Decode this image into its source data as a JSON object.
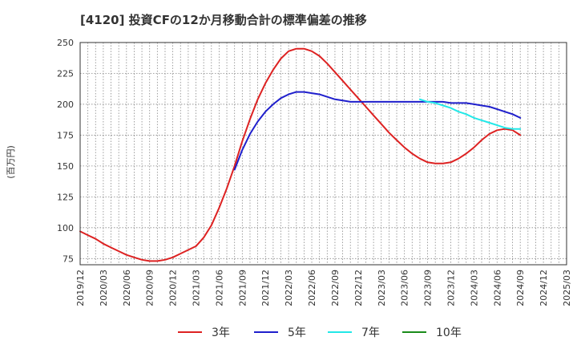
{
  "chart_data": {
    "type": "line",
    "title": "[4120]  投資CFの12か月移動合計の標準偏差の推移",
    "ylabel": "(百万円)",
    "xlabel": "",
    "ylim": [
      70,
      250
    ],
    "yticks": [
      75,
      100,
      125,
      150,
      175,
      200,
      225,
      250
    ],
    "x_ticks": [
      "2019/12",
      "2020/03",
      "2020/06",
      "2020/09",
      "2020/12",
      "2021/03",
      "2021/06",
      "2021/09",
      "2021/12",
      "2022/03",
      "2022/06",
      "2022/09",
      "2022/12",
      "2023/03",
      "2023/06",
      "2023/09",
      "2023/12",
      "2024/03",
      "2024/06",
      "2024/09",
      "2024/12",
      "2025/03"
    ],
    "grid": true,
    "legend_position": "bottom",
    "series": [
      {
        "name": "3年",
        "color": "#dd2222",
        "x": [
          "2019/12",
          "2020/01",
          "2020/02",
          "2020/03",
          "2020/04",
          "2020/05",
          "2020/06",
          "2020/07",
          "2020/08",
          "2020/09",
          "2020/10",
          "2020/11",
          "2020/12",
          "2021/01",
          "2021/02",
          "2021/03",
          "2021/04",
          "2021/05",
          "2021/06",
          "2021/07",
          "2021/08",
          "2021/09",
          "2021/10",
          "2021/11",
          "2021/12",
          "2022/01",
          "2022/02",
          "2022/03",
          "2022/04",
          "2022/05",
          "2022/06",
          "2022/07",
          "2022/08",
          "2022/09",
          "2022/10",
          "2022/11",
          "2022/12",
          "2023/01",
          "2023/02",
          "2023/03",
          "2023/04",
          "2023/05",
          "2023/06",
          "2023/07",
          "2023/08",
          "2023/09",
          "2023/10",
          "2023/11",
          "2023/12",
          "2024/01",
          "2024/02",
          "2024/03",
          "2024/04",
          "2024/05",
          "2024/06",
          "2024/07",
          "2024/08",
          "2024/09"
        ],
        "values": [
          97,
          94,
          91,
          87,
          84,
          81,
          78,
          76,
          74,
          73,
          73,
          74,
          76,
          79,
          82,
          85,
          92,
          102,
          116,
          132,
          150,
          170,
          188,
          204,
          217,
          228,
          237,
          243,
          245,
          245,
          243,
          239,
          233,
          226,
          219,
          212,
          205,
          198,
          191,
          184,
          177,
          171,
          165,
          160,
          156,
          153,
          152,
          152,
          153,
          156,
          160,
          165,
          171,
          176,
          179,
          180,
          179,
          175
        ]
      },
      {
        "name": "5年",
        "color": "#1f1fcc",
        "x": [
          "2021/08",
          "2021/09",
          "2021/10",
          "2021/11",
          "2021/12",
          "2022/01",
          "2022/02",
          "2022/03",
          "2022/04",
          "2022/05",
          "2022/06",
          "2022/07",
          "2022/08",
          "2022/09",
          "2022/10",
          "2022/11",
          "2022/12",
          "2023/01",
          "2023/02",
          "2023/03",
          "2023/04",
          "2023/05",
          "2023/06",
          "2023/07",
          "2023/08",
          "2023/09",
          "2023/10",
          "2023/11",
          "2023/12",
          "2024/01",
          "2024/02",
          "2024/03",
          "2024/04",
          "2024/05",
          "2024/06",
          "2024/07",
          "2024/08",
          "2024/09"
        ],
        "values": [
          147,
          163,
          176,
          186,
          194,
          200,
          205,
          208,
          210,
          210,
          209,
          208,
          206,
          204,
          203,
          202,
          202,
          202,
          202,
          202,
          202,
          202,
          202,
          202,
          202,
          202,
          202,
          202,
          201,
          201,
          201,
          200,
          199,
          198,
          196,
          194,
          192,
          189
        ]
      },
      {
        "name": "7年",
        "color": "#22e8e8",
        "x": [
          "2023/08",
          "2023/09",
          "2023/10",
          "2023/11",
          "2023/12",
          "2024/01",
          "2024/02",
          "2024/03",
          "2024/04",
          "2024/05",
          "2024/06",
          "2024/07",
          "2024/08",
          "2024/09"
        ],
        "values": [
          204,
          202,
          201,
          199,
          197,
          194,
          192,
          189,
          187,
          185,
          183,
          181,
          180,
          180
        ]
      },
      {
        "name": "10年",
        "color": "#1a8c1a",
        "x": [],
        "values": []
      }
    ]
  }
}
